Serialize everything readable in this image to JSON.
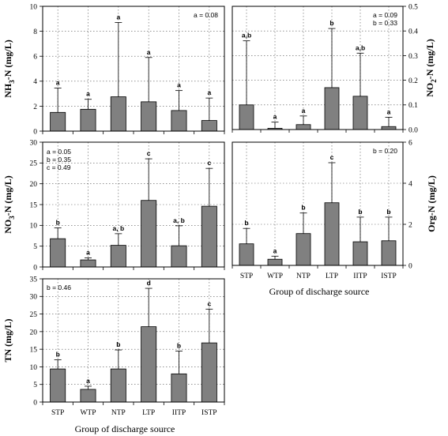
{
  "figure": {
    "xlabel_left": "Group of discharge source",
    "xlabel_right": "Group of discharge source"
  },
  "chart_data": [
    {
      "id": "nh3",
      "type": "bar",
      "ylabel": "NH3-N (mg/L)",
      "ylabel_main": "NH",
      "ylabel_sub": "3",
      "ylabel_rest": "-N (mg/L)",
      "categories": [
        "STP",
        "WTP",
        "NTP",
        "LTP",
        "IITP",
        "ISTP"
      ],
      "values": [
        1.5,
        1.75,
        2.75,
        2.35,
        1.65,
        0.85
      ],
      "errors": [
        3.45,
        2.55,
        8.7,
        5.9,
        3.25,
        2.65
      ],
      "letters": [
        "a",
        "a",
        "a",
        "a",
        "a",
        "a"
      ],
      "annotations": [
        "a = 0.08"
      ],
      "ylim": [
        0,
        10
      ],
      "yticks": [
        0,
        2,
        4,
        6,
        8,
        10
      ],
      "axis_side": "left",
      "show_categories": false,
      "grid": true
    },
    {
      "id": "no2",
      "type": "bar",
      "ylabel": "NO2-N (mg/L)",
      "ylabel_main": "NO",
      "ylabel_sub": "2",
      "ylabel_rest": "-N (mg/L)",
      "categories": [
        "STP",
        "WTP",
        "NTP",
        "LTP",
        "IITP",
        "ISTP"
      ],
      "values": [
        0.1,
        0.005,
        0.02,
        0.17,
        0.135,
        0.012
      ],
      "errors": [
        0.36,
        0.03,
        0.055,
        0.41,
        0.31,
        0.05
      ],
      "letters": [
        "a,b",
        "a",
        "a",
        "b",
        "a,b",
        "a"
      ],
      "annotations": [
        "a = 0.09",
        "b = 0.33"
      ],
      "ylim": [
        0,
        0.5
      ],
      "yticks": [
        0,
        0.1,
        0.2,
        0.3,
        0.4,
        0.5
      ],
      "tick_format": [
        "0.0",
        "0.1",
        "0.2",
        "0.3",
        "0.4",
        "0.5"
      ],
      "axis_side": "right",
      "show_categories": false,
      "grid": true
    },
    {
      "id": "no3",
      "type": "bar",
      "ylabel": "NO3-N (mg/L)",
      "ylabel_main": "NO",
      "ylabel_sub": "3",
      "ylabel_rest": "-N (mg/L)",
      "categories": [
        "STP",
        "WTP",
        "NTP",
        "LTP",
        "IITP",
        "ISTP"
      ],
      "values": [
        6.8,
        1.7,
        5.2,
        16.0,
        5.1,
        14.6
      ],
      "errors": [
        9.4,
        2.2,
        8.0,
        26.0,
        9.9,
        23.7
      ],
      "letters": [
        "b",
        "a",
        "a, b",
        "c",
        "a, b",
        "c"
      ],
      "annotations": [
        "a = 0.05",
        "b = 0.35",
        "c = 0.49"
      ],
      "ylim": [
        0,
        30
      ],
      "yticks": [
        0,
        5,
        10,
        15,
        20,
        25,
        30
      ],
      "axis_side": "left",
      "show_categories": false,
      "grid": true
    },
    {
      "id": "orgn",
      "type": "bar",
      "ylabel": "Org-N (mg/L)",
      "ylabel_main": "Org-N (mg/L)",
      "ylabel_sub": "",
      "ylabel_rest": "",
      "categories": [
        "STP",
        "WTP",
        "NTP",
        "LTP",
        "IITP",
        "ISTP"
      ],
      "values": [
        1.05,
        0.3,
        1.55,
        3.05,
        1.15,
        1.2
      ],
      "errors": [
        1.8,
        0.45,
        2.55,
        5.0,
        2.35,
        2.35
      ],
      "letters": [
        "b",
        "a",
        "b",
        "c",
        "b",
        "b"
      ],
      "annotations": [
        "b = 0.20"
      ],
      "ylim": [
        0,
        6
      ],
      "yticks": [
        0,
        2,
        4,
        6
      ],
      "axis_side": "right",
      "show_categories": true,
      "grid": true
    },
    {
      "id": "tn",
      "type": "bar",
      "ylabel": "TN (mg/L)",
      "ylabel_main": "TN (mg/L)",
      "ylabel_sub": "",
      "ylabel_rest": "",
      "categories": [
        "STP",
        "WTP",
        "NTP",
        "LTP",
        "IITP",
        "ISTP"
      ],
      "values": [
        9.4,
        3.6,
        9.4,
        21.4,
        8.0,
        16.8
      ],
      "errors": [
        12.0,
        4.5,
        14.8,
        32.3,
        14.5,
        26.4
      ],
      "letters": [
        "b",
        "a",
        "b",
        "d",
        "b",
        "c"
      ],
      "annotations": [
        "b = 0.46"
      ],
      "ylim": [
        0,
        35
      ],
      "yticks": [
        0,
        5,
        10,
        15,
        20,
        25,
        30,
        35
      ],
      "axis_side": "left",
      "show_categories": true,
      "grid": true
    }
  ]
}
